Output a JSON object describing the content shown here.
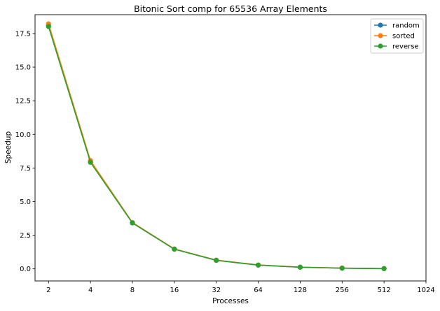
{
  "chart_data": {
    "type": "line",
    "title": "Bitonic Sort comp for 65536 Array Elements",
    "xlabel": "Processes",
    "ylabel": "Speedup",
    "x_scale": "log2",
    "x_ticks": [
      "2",
      "4",
      "8",
      "16",
      "32",
      "64",
      "128",
      "256",
      "512",
      "1024"
    ],
    "x_tick_values": [
      2,
      4,
      8,
      16,
      32,
      64,
      128,
      256,
      512,
      1024
    ],
    "y_ticks": [
      "0.0",
      "2.5",
      "5.0",
      "7.5",
      "10.0",
      "12.5",
      "15.0",
      "17.5"
    ],
    "y_tick_values": [
      0,
      2.5,
      5,
      7.5,
      10,
      12.5,
      15,
      17.5
    ],
    "xlim": [
      1.6,
      1024
    ],
    "ylim": [
      -0.9,
      18.9
    ],
    "x": [
      2,
      4,
      8,
      16,
      32,
      64,
      128,
      256,
      512
    ],
    "series": [
      {
        "name": "random",
        "color": "#1f77b4",
        "values": [
          18.1,
          7.95,
          3.42,
          1.47,
          0.64,
          0.28,
          0.12,
          0.05,
          0.02
        ]
      },
      {
        "name": "sorted",
        "color": "#ff7f0e",
        "values": [
          18.22,
          8.05,
          3.45,
          1.48,
          0.65,
          0.29,
          0.13,
          0.06,
          0.02
        ]
      },
      {
        "name": "reverse",
        "color": "#2ca02c",
        "values": [
          18.02,
          7.92,
          3.41,
          1.46,
          0.63,
          0.28,
          0.12,
          0.05,
          0.02
        ]
      }
    ],
    "legend_position": "top-right",
    "grid": false
  }
}
